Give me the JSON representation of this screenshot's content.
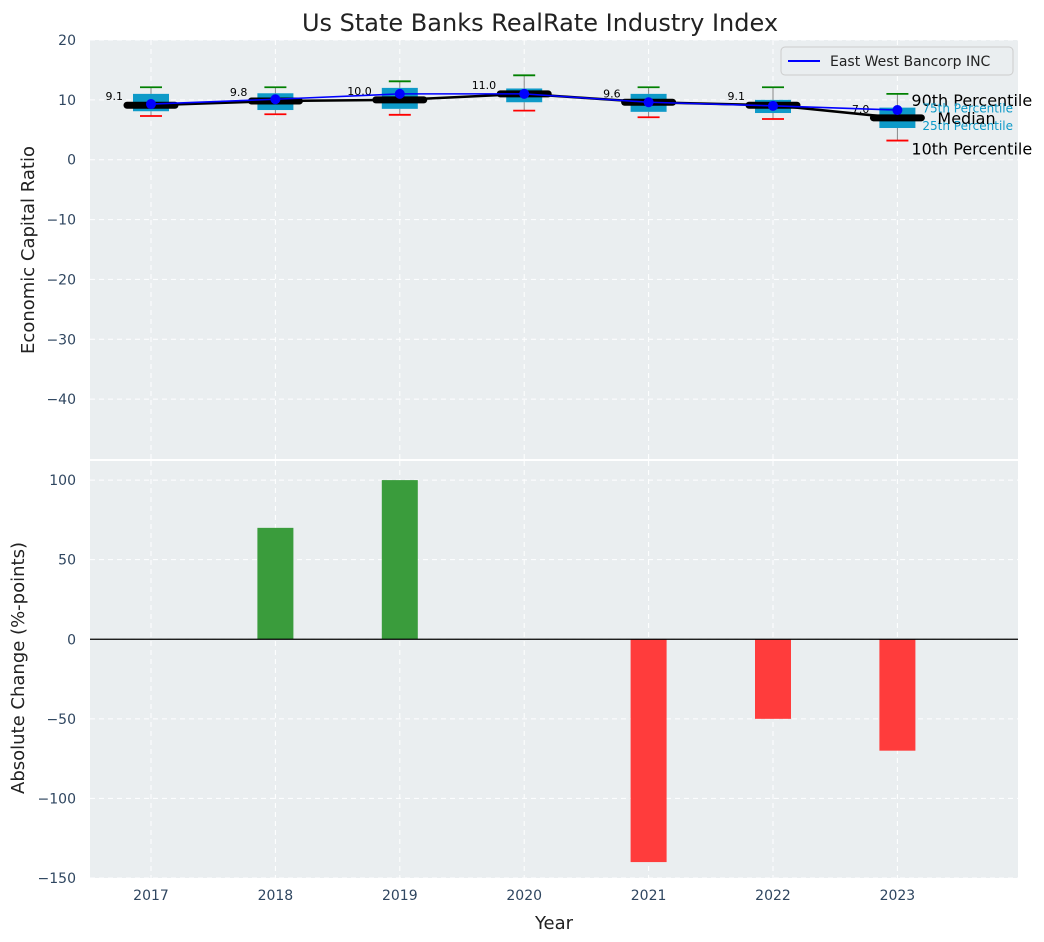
{
  "chart_data": [
    {
      "type": "box",
      "title": "Us State Banks RealRate Industry Index",
      "xlabel": "",
      "ylabel": "Economic Capital Ratio",
      "ylim": [
        -50,
        20
      ],
      "yticks": [
        20,
        10,
        0,
        -10,
        -20,
        -30,
        -40
      ],
      "ytick_labels": [
        "20",
        "10",
        "0",
        "−10",
        "−20",
        "−30",
        "−40"
      ],
      "categories": [
        "2017",
        "2018",
        "2019",
        "2020",
        "2021",
        "2022",
        "2023"
      ],
      "percentiles": {
        "p10": [
          7.3,
          7.6,
          7.5,
          8.2,
          7.1,
          6.8,
          3.2
        ],
        "p25": [
          8.1,
          8.3,
          8.5,
          9.6,
          8.0,
          7.8,
          5.3
        ],
        "median": [
          9.1,
          9.8,
          10.0,
          11.0,
          9.6,
          9.1,
          7.0
        ],
        "p75": [
          11.0,
          11.1,
          12.0,
          11.9,
          11.0,
          10.0,
          8.7
        ],
        "p90": [
          12.1,
          12.1,
          13.1,
          14.1,
          12.1,
          12.1,
          11.0
        ]
      },
      "median_labels": [
        "9.1",
        "9.8",
        "10.0",
        "11.0",
        "9.6",
        "9.1",
        "7.0"
      ],
      "series": [
        {
          "name": "East West Bancorp INC",
          "values": [
            9.3,
            10.1,
            11.0,
            11.0,
            9.6,
            9.0,
            8.3
          ]
        }
      ],
      "legend": {
        "position": "top-right",
        "entries": [
          "East West Bancorp INC"
        ]
      },
      "annotations": {
        "p90": "90th Percentile",
        "p75": "75th Percentile",
        "median": "Median",
        "p25": "25th Percentile",
        "p10": "10th Percentile"
      },
      "colors": {
        "box": "#0e9ac8",
        "median": "#000000",
        "company": "#0000ff",
        "p90_whisker": "#008000",
        "p10_whisker": "#ff0000",
        "background": "#eaeef0"
      }
    },
    {
      "type": "bar",
      "xlabel": "Year",
      "ylabel": "Absolute Change (%-points)",
      "ylim": [
        -150,
        112
      ],
      "yticks": [
        100,
        50,
        0,
        -50,
        -100,
        -150
      ],
      "ytick_labels": [
        "100",
        "50",
        "0",
        "−50",
        "−100",
        "−150"
      ],
      "categories": [
        "2017",
        "2018",
        "2019",
        "2020",
        "2021",
        "2022",
        "2023"
      ],
      "values": [
        0,
        70,
        100,
        0,
        -140,
        -50,
        -70
      ],
      "colors": {
        "positive": "#3a9c3c",
        "negative": "#ff3c3c",
        "zero_line": "#000000"
      }
    }
  ]
}
